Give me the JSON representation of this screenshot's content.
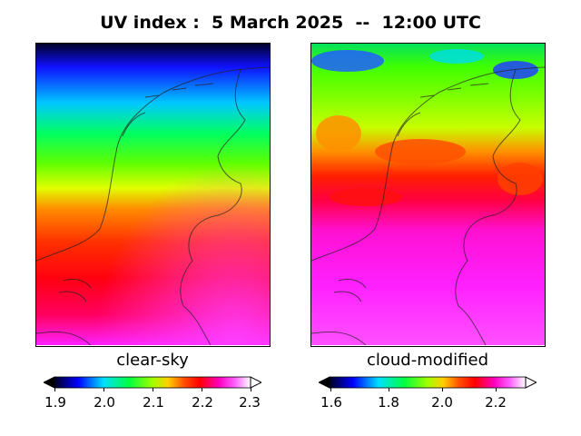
{
  "title": "UV index :  5 March 2025  --  12:00 UTC",
  "panels": [
    {
      "label": "clear-sky",
      "colorbar_ticks": [
        "1.9",
        "2.0",
        "2.1",
        "2.2",
        "2.3"
      ],
      "range": [
        1.9,
        2.3
      ]
    },
    {
      "label": "cloud-modified",
      "colorbar_ticks": [
        "1.6",
        "1.8",
        "2.0",
        "2.2"
      ],
      "range": [
        1.6,
        2.33
      ]
    }
  ],
  "colormap": {
    "name": "gist_ncar-like",
    "stops": [
      "#000000",
      "#0000ff",
      "#00ffff",
      "#00ff00",
      "#ffff00",
      "#ff8000",
      "#ff0000",
      "#ff00a0",
      "#ff00ff",
      "#ffffff"
    ]
  }
}
